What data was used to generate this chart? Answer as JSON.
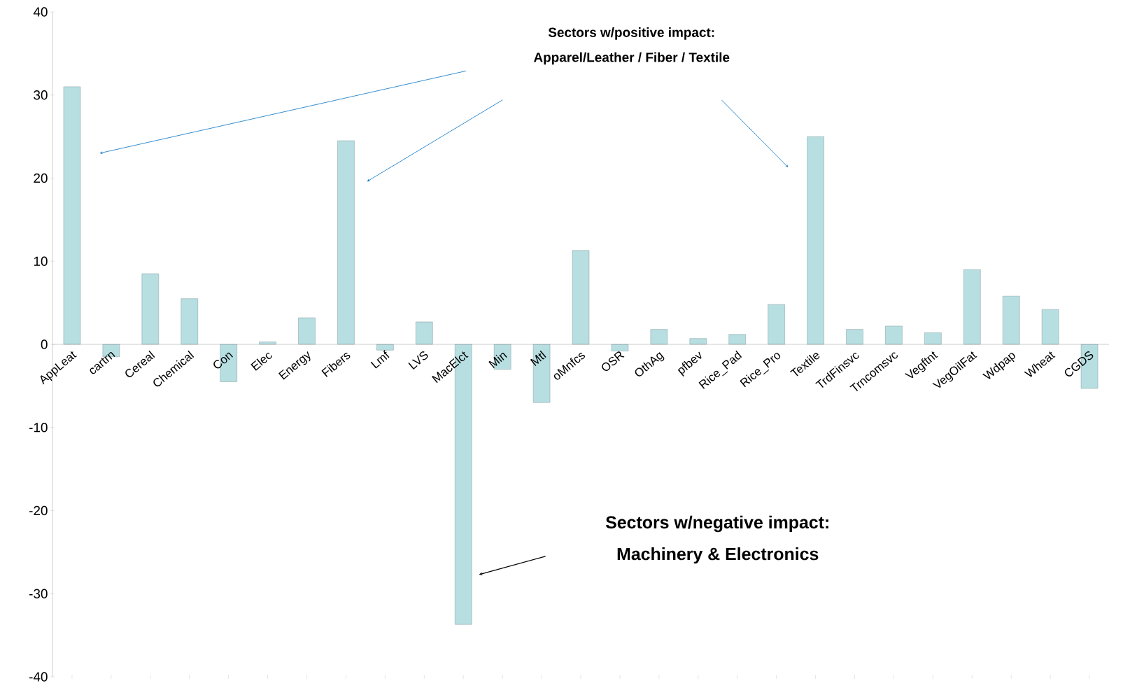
{
  "chart_data": {
    "type": "bar",
    "categories": [
      "AppLeat",
      "cartrn",
      "Cereal",
      "Chemical",
      "Con",
      "Elec",
      "Energy",
      "Fibers",
      "Lmf",
      "LVS",
      "MacElct",
      "Min",
      "Mtl",
      "oMnfcs",
      "OSR",
      "OthAg",
      "pfbev",
      "Rice_Pad",
      "Rice_Pro",
      "Textile",
      "TrdFinsvc",
      "Trncomsvc",
      "Vegftnt",
      "VegOilFat",
      "Wdpap",
      "Wheat",
      "CGDS"
    ],
    "values": [
      31,
      -1.5,
      8.5,
      5.5,
      -4.5,
      0.3,
      3.2,
      24.5,
      -0.7,
      2.7,
      -33.7,
      -3,
      -7,
      11.3,
      -0.8,
      1.8,
      0.7,
      1.2,
      4.8,
      25,
      1.8,
      2.2,
      1.4,
      9,
      5.8,
      4.2,
      -5.3
    ],
    "color": "#b7dfe2",
    "ylim": [
      -40,
      40
    ],
    "yticks": [
      -40,
      -30,
      -20,
      -10,
      0,
      10,
      20,
      30,
      40
    ],
    "annotations": [
      "Sectors w/positive impact:",
      "Apparel/Leather / Fiber / Textile",
      "Sectors w/negative impact:",
      "Machinery & Electronics"
    ],
    "grid": false
  }
}
